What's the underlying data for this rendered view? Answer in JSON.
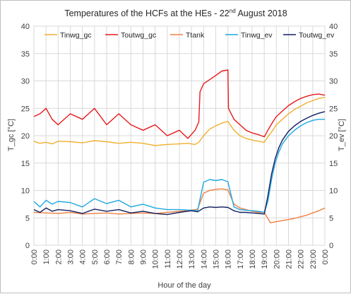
{
  "chart_data": {
    "type": "line",
    "title": {
      "prefix": "Temperatures of the HCFs at the HEs - 22",
      "sup": "nd",
      "suffix": " August 2018"
    },
    "xlabel": "Hour of the day",
    "ylabel_left": "T_gc [°C]",
    "ylabel_right": "T_ev [°C]",
    "ylim_left": [
      0,
      40
    ],
    "ylim_right": [
      0,
      40
    ],
    "yticks_left": [
      "0",
      "5",
      "10",
      "15",
      "20",
      "25",
      "30",
      "35",
      "40"
    ],
    "yticks_right": [
      "0",
      "5",
      "10",
      "15",
      "20",
      "25",
      "30",
      "35",
      "40"
    ],
    "xlim": [
      0,
      24
    ],
    "xticks": [
      "0:00",
      "1:00",
      "2:00",
      "3:00",
      "4:00",
      "5:00",
      "6:00",
      "7:00",
      "8:00",
      "9:00",
      "10:00",
      "11:00",
      "12:00",
      "13:00",
      "14:00",
      "15:00",
      "16:00",
      "17:00",
      "18:00",
      "19:00",
      "20:00",
      "21:00",
      "22:00",
      "23:00",
      "0:00"
    ],
    "grid": true,
    "legend_position": "top",
    "series": [
      {
        "name": "Tinwg_gc",
        "color": "#f0b030",
        "axis": "left",
        "x": [
          0,
          0.5,
          1,
          1.5,
          2,
          3,
          4,
          5,
          6,
          7,
          8,
          9,
          10,
          11,
          12,
          12.7,
          13.3,
          13.6,
          14,
          14.5,
          15,
          15.5,
          16,
          16.5,
          17,
          17.5,
          18,
          18.5,
          19,
          19.3,
          19.7,
          20,
          20.5,
          21,
          21.5,
          22,
          22.5,
          23,
          23.5,
          24
        ],
        "y": [
          19.0,
          18.6,
          18.8,
          18.5,
          19.0,
          18.9,
          18.7,
          19.1,
          18.9,
          18.6,
          18.8,
          18.6,
          18.2,
          18.4,
          18.5,
          18.6,
          18.4,
          18.8,
          20.0,
          21.2,
          21.8,
          22.3,
          22.6,
          21.0,
          20.0,
          19.5,
          19.2,
          19.0,
          18.8,
          19.8,
          21.0,
          22.0,
          23.0,
          24.0,
          24.8,
          25.4,
          26.0,
          26.4,
          26.8,
          27.0
        ]
      },
      {
        "name": "Toutwg_gc",
        "color": "#e8191c",
        "axis": "left",
        "x": [
          0,
          0.5,
          1,
          1.5,
          2,
          3,
          4,
          5,
          6,
          7,
          8,
          9,
          10,
          11,
          12,
          12.7,
          13.3,
          13.6,
          13.7,
          14,
          15,
          15.5,
          16,
          16.05,
          16.5,
          17,
          17.5,
          18,
          18.5,
          19,
          19.3,
          19.7,
          20,
          20.5,
          21,
          21.5,
          22,
          22.5,
          23,
          23.5,
          24
        ],
        "y": [
          23.5,
          24.0,
          25.0,
          23.0,
          22.0,
          24.0,
          23.0,
          25.0,
          22.0,
          24.0,
          22.0,
          21.0,
          22.0,
          20.0,
          21.0,
          19.5,
          21.0,
          22.5,
          28.0,
          29.5,
          31.0,
          31.8,
          32.0,
          25.0,
          23.0,
          22.0,
          21.0,
          20.5,
          20.2,
          19.8,
          21.0,
          22.5,
          23.5,
          24.5,
          25.5,
          26.2,
          26.8,
          27.2,
          27.5,
          27.6,
          27.4
        ]
      },
      {
        "name": "Ttank",
        "color": "#f08040",
        "axis": "left",
        "x": [
          0,
          1,
          2,
          3,
          4,
          5,
          6,
          7,
          8,
          9,
          10,
          11,
          12,
          13,
          13.5,
          14,
          14.5,
          15,
          15.5,
          16,
          16.5,
          17,
          17.5,
          18,
          18.5,
          19,
          19.5,
          20,
          20.5,
          21,
          21.5,
          22,
          22.5,
          23,
          23.5,
          24
        ],
        "y": [
          6.0,
          5.9,
          5.8,
          6.0,
          5.7,
          5.8,
          5.9,
          5.7,
          5.8,
          5.9,
          5.8,
          6.0,
          6.2,
          6.4,
          6.6,
          9.5,
          10.0,
          10.2,
          10.3,
          10.1,
          7.5,
          6.8,
          6.5,
          6.2,
          6.0,
          6.0,
          4.1,
          4.3,
          4.5,
          4.7,
          4.9,
          5.2,
          5.5,
          5.9,
          6.3,
          6.8
        ]
      },
      {
        "name": "Tinwg_ev",
        "color": "#1fa8e0",
        "axis": "right",
        "x": [
          0,
          0.5,
          1,
          1.5,
          2,
          3,
          4,
          5,
          6,
          7,
          8,
          9,
          10,
          11,
          12,
          13,
          13.5,
          14,
          14.5,
          15,
          15.5,
          16,
          16.5,
          17,
          17.5,
          18,
          18.5,
          19,
          19.3,
          19.6,
          19.9,
          20.2,
          20.5,
          21,
          21.5,
          22,
          22.5,
          23,
          23.5,
          24
        ],
        "y": [
          8.0,
          7.0,
          8.2,
          7.5,
          8.0,
          7.8,
          7.0,
          8.5,
          7.6,
          8.2,
          7.0,
          7.5,
          6.8,
          6.5,
          6.5,
          6.4,
          6.3,
          11.5,
          12.0,
          11.8,
          12.0,
          11.6,
          7.0,
          6.5,
          6.4,
          6.3,
          6.2,
          6.0,
          8.0,
          12.0,
          15.0,
          17.0,
          18.5,
          20.0,
          21.0,
          21.8,
          22.4,
          22.8,
          23.0,
          23.0
        ]
      },
      {
        "name": "Toutwg_ev",
        "color": "#102060",
        "axis": "right",
        "x": [
          0,
          0.5,
          1,
          1.5,
          2,
          3,
          4,
          5,
          6,
          7,
          8,
          9,
          10,
          11,
          12,
          13,
          13.5,
          14,
          14.5,
          15,
          15.5,
          16,
          16.5,
          17,
          17.5,
          18,
          18.5,
          19,
          19.3,
          19.6,
          19.9,
          20.2,
          20.5,
          21,
          21.5,
          22,
          22.5,
          23,
          23.5,
          24
        ],
        "y": [
          6.5,
          6.0,
          6.8,
          6.2,
          6.5,
          6.3,
          5.8,
          6.6,
          6.2,
          6.5,
          5.9,
          6.2,
          5.8,
          5.6,
          6.0,
          6.3,
          6.1,
          6.8,
          7.0,
          6.9,
          7.0,
          6.9,
          6.3,
          6.0,
          6.0,
          5.9,
          5.8,
          5.7,
          9.0,
          13.0,
          15.8,
          17.8,
          19.2,
          20.8,
          21.8,
          22.6,
          23.2,
          23.7,
          24.1,
          24.4
        ]
      }
    ]
  }
}
